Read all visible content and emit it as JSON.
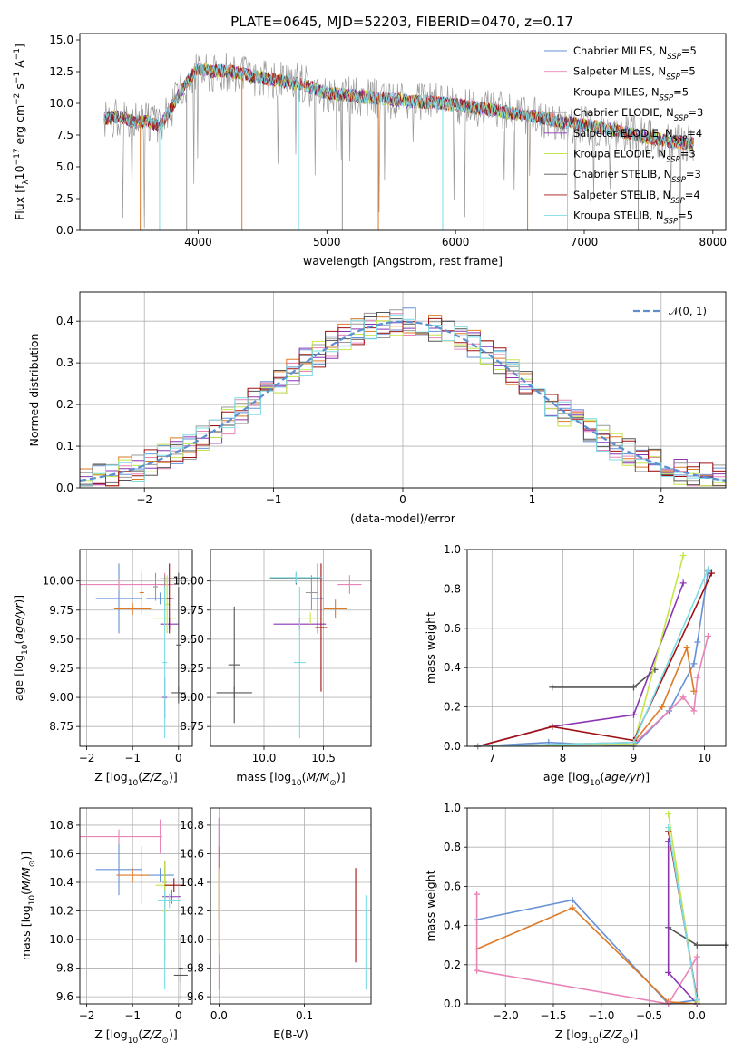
{
  "chart_data": [
    {
      "type": "line",
      "title": "PLATE=0645, MJD=52203, FIBERID=0470, z=0.17",
      "xlabel": "wavelength [Angstrom, rest frame]",
      "ylabel": "Flux [f_λ10^-17 erg cm^-2 s^-1 A^-1]",
      "xlim": [
        3080,
        8100
      ],
      "ylim": [
        0,
        15.5
      ],
      "xticks": [
        "4000",
        "5000",
        "6000",
        "7000",
        "8000"
      ],
      "yticks": [
        "0.0",
        "2.5",
        "5.0",
        "7.5",
        "10.0",
        "12.5",
        "15.0"
      ],
      "grid": false,
      "legend": "upper right",
      "series": [
        {
          "name": "Chabrier MILES, N_SSP=5",
          "color": "#6591d6"
        },
        {
          "name": "Salpeter MILES, N_SSP=5",
          "color": "#e883b8"
        },
        {
          "name": "Kroupa MILES, N_SSP=5",
          "color": "#dd7a26"
        },
        {
          "name": "Chabrier ELODIE, N_SSP=3",
          "color": "#999999"
        },
        {
          "name": "Salpeter ELODIE, N_SSP=4",
          "color": "#8b35b3"
        },
        {
          "name": "Kroupa ELODIE, N_SSP=3",
          "color": "#c3e64a"
        },
        {
          "name": "Chabrier STELIB, N_SSP=3",
          "color": "#555555"
        },
        {
          "name": "Salpeter STELIB, N_SSP=4",
          "color": "#a01010"
        },
        {
          "name": "Kroupa STELIB, N_SSP=5",
          "color": "#7ddce6"
        }
      ],
      "continuum": {
        "x": [
          3270,
          3400,
          3500,
          3600,
          3700,
          3800,
          3900,
          4000,
          4100,
          4200,
          4400,
          4600,
          4800,
          5000,
          5200,
          5400,
          5600,
          5800,
          6000,
          6200,
          6400,
          6600,
          6800,
          7000,
          7200,
          7400,
          7600,
          7850
        ],
        "y": [
          8.8,
          9.0,
          8.5,
          8.6,
          8.2,
          9.8,
          11.5,
          12.8,
          12.5,
          12.6,
          12.2,
          11.8,
          11.5,
          10.8,
          10.6,
          10.4,
          10.2,
          10.1,
          9.9,
          9.6,
          9.3,
          9.0,
          8.6,
          8.3,
          8.0,
          7.5,
          7.1,
          6.8
        ]
      }
    },
    {
      "type": "line",
      "xlabel": "(data-model)/error",
      "ylabel": "Normed distribution",
      "xlim": [
        -2.5,
        2.5
      ],
      "ylim": [
        0,
        0.47
      ],
      "xticks": [
        "−2",
        "−1",
        "0",
        "1",
        "2"
      ],
      "yticks": [
        "0.0",
        "0.1",
        "0.2",
        "0.3",
        "0.4"
      ],
      "grid": true,
      "legend": "upper right",
      "reference": {
        "name": "𝒩(0, 1)",
        "mean": 0,
        "sigma": 1,
        "color": "#5b8fd0"
      }
    },
    {
      "type": "scatter",
      "xlabel": "Z [log10(Z/Z⊙)]",
      "ylabel": "age [log10(age/yr)]",
      "xlim": [
        -2.15,
        0.3
      ],
      "ylim": [
        8.58,
        10.27
      ],
      "xticks": [
        "−2",
        "−1",
        "0"
      ],
      "yticks": [
        "8.75",
        "9.00",
        "9.25",
        "9.50",
        "9.75",
        "10.00"
      ],
      "grid": true,
      "points": [
        {
          "x": -1.3,
          "y": 9.85,
          "xerr": 0.5,
          "yerr": 0.3,
          "c": 0
        },
        {
          "x": -0.4,
          "y": 9.85,
          "xerr": 0.3,
          "yerr": 0.05,
          "c": 0
        },
        {
          "x": -1.3,
          "y": 9.97,
          "xerr": 1.2,
          "yerr": 0.05,
          "c": 1
        },
        {
          "x": -0.3,
          "y": 10.02,
          "xerr": 0.1,
          "yerr": 0.05,
          "c": 1
        },
        {
          "x": -1.0,
          "y": 9.76,
          "xerr": 0.4,
          "yerr": 0.05,
          "c": 2
        },
        {
          "x": -0.8,
          "y": 9.9,
          "xerr": 0.05,
          "yerr": 0.18,
          "c": 2
        },
        {
          "x": -0.5,
          "y": 9.95,
          "xerr": 0.05,
          "yerr": 0.12,
          "c": 3
        },
        {
          "x": -0.3,
          "y": 9.85,
          "xerr": 0.05,
          "yerr": 0.2,
          "c": 3
        },
        {
          "x": -0.2,
          "y": 9.63,
          "xerr": 0.2,
          "yerr": 0.05,
          "c": 4
        },
        {
          "x": -0.3,
          "y": 9.0,
          "xerr": 0.05,
          "yerr": 0.18,
          "c": 4
        },
        {
          "x": -0.3,
          "y": 9.68,
          "xerr": 0.25,
          "yerr": 0.05,
          "c": 5
        },
        {
          "x": -0.25,
          "y": 9.8,
          "xerr": 0.05,
          "yerr": 0.25,
          "c": 5
        },
        {
          "x": 0.0,
          "y": 10.02,
          "xerr": 0.2,
          "yerr": 0.05,
          "c": 6
        },
        {
          "x": 0.0,
          "y": 9.04,
          "xerr": 0.15,
          "yerr": 0.05,
          "c": 6
        },
        {
          "x": 0.0,
          "y": 9.45,
          "xerr": 0.05,
          "yerr": 0.5,
          "c": 6
        },
        {
          "x": -0.2,
          "y": 9.85,
          "xerr": 0.05,
          "yerr": 0.3,
          "c": 7
        },
        {
          "x": -0.3,
          "y": 9.3,
          "xerr": 0.05,
          "yerr": 0.65,
          "c": 8
        }
      ]
    },
    {
      "type": "scatter",
      "xlabel": "mass [log10(M/M⊙)]",
      "xlim": [
        9.55,
        10.9
      ],
      "ylim": [
        8.58,
        10.27
      ],
      "xticks": [
        "10.0",
        "10.5"
      ],
      "yticks": [
        "8.75",
        "9.00",
        "9.25",
        "9.50",
        "9.75",
        "10.00"
      ],
      "grid": true,
      "points": [
        {
          "x": 10.45,
          "y": 9.85,
          "xerr": 0.05,
          "yerr": 0.3,
          "c": 0
        },
        {
          "x": 10.72,
          "y": 9.97,
          "xerr": 0.1,
          "yerr": 0.08,
          "c": 1
        },
        {
          "x": 10.6,
          "y": 9.76,
          "xerr": 0.1,
          "yerr": 0.08,
          "c": 2
        },
        {
          "x": 10.4,
          "y": 9.9,
          "xerr": 0.05,
          "yerr": 0.15,
          "c": 3
        },
        {
          "x": 10.3,
          "y": 9.63,
          "xerr": 0.22,
          "yerr": 0.05,
          "c": 4
        },
        {
          "x": 10.39,
          "y": 9.68,
          "xerr": 0.11,
          "yerr": 0.05,
          "c": 5
        },
        {
          "x": 9.75,
          "y": 9.04,
          "xerr": 0.15,
          "yerr": 0.05,
          "c": 6
        },
        {
          "x": 9.75,
          "y": 9.28,
          "xerr": 0.05,
          "yerr": 0.5,
          "c": 6
        },
        {
          "x": 10.27,
          "y": 10.02,
          "xerr": 0.22,
          "yerr": 0.05,
          "c": 6
        },
        {
          "x": 10.48,
          "y": 9.6,
          "xerr": 0.05,
          "yerr": 0.55,
          "c": 7
        },
        {
          "x": 10.3,
          "y": 9.3,
          "xerr": 0.05,
          "yerr": 0.65,
          "c": 8
        },
        {
          "x": 10.27,
          "y": 10.03,
          "xerr": 0.22,
          "yerr": 0.05,
          "c": 8
        }
      ]
    },
    {
      "type": "line",
      "xlabel": "age [log10(age/yr)]",
      "ylabel": "mass weight",
      "xlim": [
        6.65,
        10.3
      ],
      "ylim": [
        0,
        1.0
      ],
      "xticks": [
        "7",
        "8",
        "9",
        "10"
      ],
      "yticks": [
        "0.0",
        "0.2",
        "0.4",
        "0.6",
        "0.8",
        "1.0"
      ],
      "grid": true,
      "series": [
        {
          "c": 0,
          "x": [
            6.8,
            7.8,
            9.0,
            9.5,
            9.85,
            9.9,
            10.05
          ],
          "y": [
            0.0,
            0.02,
            0.0,
            0.18,
            0.42,
            0.53,
            0.89
          ]
        },
        {
          "c": 1,
          "x": [
            6.8,
            9.0,
            9.7,
            9.85,
            9.9,
            10.05
          ],
          "y": [
            0.0,
            0.01,
            0.25,
            0.18,
            0.35,
            0.56
          ]
        },
        {
          "c": 2,
          "x": [
            6.8,
            9.0,
            9.4,
            9.75,
            9.85
          ],
          "y": [
            0.0,
            0.02,
            0.2,
            0.5,
            0.28
          ]
        },
        {
          "c": 6,
          "x": [
            7.85,
            9.0,
            9.3
          ],
          "y": [
            0.3,
            0.3,
            0.39
          ]
        },
        {
          "c": 4,
          "x": [
            6.8,
            7.85,
            9.0,
            9.7
          ],
          "y": [
            0.0,
            0.1,
            0.16,
            0.83
          ]
        },
        {
          "c": 5,
          "x": [
            6.8,
            9.0,
            9.7
          ],
          "y": [
            0.0,
            0.01,
            0.97
          ]
        },
        {
          "c": 7,
          "x": [
            6.8,
            7.85,
            9.0,
            10.1
          ],
          "y": [
            0.0,
            0.1,
            0.03,
            0.88
          ]
        },
        {
          "c": 8,
          "x": [
            6.8,
            9.0,
            10.05
          ],
          "y": [
            0.0,
            0.02,
            0.9
          ]
        },
        {
          "c": 3,
          "x": [
            6.8,
            9.0
          ],
          "y": [
            0.0,
            0.0
          ]
        }
      ]
    },
    {
      "type": "scatter",
      "xlabel": "Z [log10(Z/Z⊙)]",
      "ylabel": "mass [log10(M/M⊙)]",
      "xlim": [
        -2.15,
        0.3
      ],
      "ylim": [
        9.55,
        10.92
      ],
      "xticks": [
        "−2",
        "−1",
        "0"
      ],
      "yticks": [
        "9.6",
        "9.8",
        "10.0",
        "10.2",
        "10.4",
        "10.6",
        "10.8"
      ],
      "grid": true,
      "points": [
        {
          "x": -1.3,
          "y": 10.49,
          "xerr": 0.5,
          "yerr": 0.18,
          "c": 0
        },
        {
          "x": -0.4,
          "y": 10.45,
          "xerr": 0.3,
          "yerr": 0.05,
          "c": 0
        },
        {
          "x": -1.3,
          "y": 10.72,
          "xerr": 0.9,
          "yerr": 0.05,
          "c": 1
        },
        {
          "x": -0.4,
          "y": 10.72,
          "xerr": 0.05,
          "yerr": 0.12,
          "c": 1
        },
        {
          "x": -1.0,
          "y": 10.45,
          "xerr": 0.35,
          "yerr": 0.05,
          "c": 2
        },
        {
          "x": -0.8,
          "y": 10.45,
          "xerr": 0.05,
          "yerr": 0.2,
          "c": 2
        },
        {
          "x": -0.3,
          "y": 10.4,
          "xerr": 0.05,
          "yerr": 0.15,
          "c": 3
        },
        {
          "x": -0.15,
          "y": 10.3,
          "xerr": 0.2,
          "yerr": 0.05,
          "c": 4
        },
        {
          "x": -0.3,
          "y": 10.2,
          "xerr": 0.05,
          "yerr": 0.35,
          "c": 4
        },
        {
          "x": -0.3,
          "y": 10.38,
          "xerr": 0.2,
          "yerr": 0.05,
          "c": 5
        },
        {
          "x": -0.3,
          "y": 10.2,
          "xerr": 0.05,
          "yerr": 0.35,
          "c": 5
        },
        {
          "x": 0.05,
          "y": 9.75,
          "xerr": 0.15,
          "yerr": 0.05,
          "c": 6
        },
        {
          "x": 0.05,
          "y": 9.8,
          "xerr": 0.05,
          "yerr": 0.22,
          "c": 6
        },
        {
          "x": -0.1,
          "y": 10.38,
          "xerr": 0.2,
          "yerr": 0.05,
          "c": 7
        },
        {
          "x": -0.3,
          "y": 10.0,
          "xerr": 0.05,
          "yerr": 0.35,
          "c": 8
        },
        {
          "x": -0.2,
          "y": 10.27,
          "xerr": 0.25,
          "yerr": 0.05,
          "c": 8
        }
      ]
    },
    {
      "type": "scatter",
      "xlabel": "E(B-V)",
      "xlim": [
        -0.01,
        0.178
      ],
      "ylim": [
        9.55,
        10.92
      ],
      "xticks": [
        "0.0",
        "0.1"
      ],
      "yticks": [
        "9.6",
        "9.8",
        "10.0",
        "10.2",
        "10.4",
        "10.6",
        "10.8"
      ],
      "grid": true,
      "points": [
        {
          "x": 0.0,
          "y": 10.4,
          "yerr": 0.45,
          "c": 4
        },
        {
          "x": 0.0,
          "y": 10.25,
          "yerr": 0.6,
          "c": 1
        },
        {
          "x": 0.0,
          "y": 10.4,
          "yerr": 0.25,
          "c": 2
        },
        {
          "x": 0.0,
          "y": 10.2,
          "yerr": 0.3,
          "c": 5
        },
        {
          "x": 0.16,
          "y": 10.17,
          "yerr": 0.33,
          "c": 7
        },
        {
          "x": 0.172,
          "y": 9.98,
          "yerr": 0.33,
          "c": 8
        }
      ]
    },
    {
      "type": "line",
      "xlabel": "Z [log10(Z/Z⊙)]",
      "ylabel": "mass weight",
      "xlim": [
        -2.4,
        0.3
      ],
      "ylim": [
        0,
        1.0
      ],
      "xticks": [
        "−2.0",
        "−1.5",
        "−1.0",
        "−0.5",
        "0.0"
      ],
      "yticks": [
        "0.0",
        "0.2",
        "0.4",
        "0.6",
        "0.8",
        "1.0"
      ],
      "grid": true,
      "series": [
        {
          "c": 0,
          "x": [
            -2.3,
            -1.3,
            -0.3,
            0.0
          ],
          "y": [
            0.43,
            0.53,
            0.0,
            0.02
          ]
        },
        {
          "c": 2,
          "x": [
            -2.3,
            -1.3,
            -0.3,
            0.0
          ],
          "y": [
            0.28,
            0.49,
            0.01,
            0.0
          ]
        },
        {
          "c": 1,
          "x": [
            -2.3,
            -2.3,
            -0.3,
            0.0,
            0.0
          ],
          "y": [
            0.56,
            0.17,
            0.0,
            0.24,
            0.0
          ]
        },
        {
          "c": 6,
          "x": [
            -0.3,
            0.0,
            0.3
          ],
          "y": [
            0.39,
            0.3,
            0.3
          ]
        },
        {
          "c": 4,
          "x": [
            -0.3,
            -0.3,
            0.0
          ],
          "y": [
            0.83,
            0.16,
            0.0
          ]
        },
        {
          "c": 5,
          "x": [
            -0.3,
            0.0
          ],
          "y": [
            0.97,
            0.01
          ]
        },
        {
          "c": 7,
          "x": [
            -0.3,
            0.0
          ],
          "y": [
            0.88,
            0.03
          ]
        },
        {
          "c": 8,
          "x": [
            -0.3,
            0.0
          ],
          "y": [
            0.9,
            0.02
          ]
        }
      ]
    }
  ]
}
